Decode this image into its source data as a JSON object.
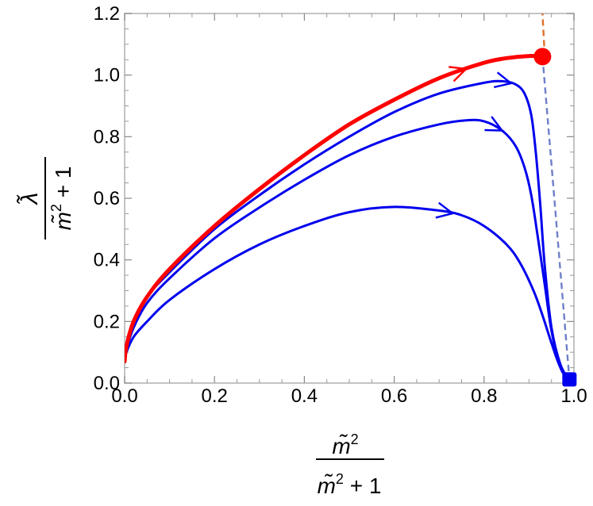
{
  "chart_data": {
    "type": "line",
    "xlim": [
      0,
      1
    ],
    "ylim": [
      0,
      1.2
    ],
    "x_ticks": [
      "0.0",
      "0.2",
      "0.4",
      "0.6",
      "0.8",
      "1.0"
    ],
    "y_ticks": [
      "0.0",
      "0.2",
      "0.4",
      "0.6",
      "0.8",
      "1.0",
      "1.2"
    ],
    "xlabel": {
      "numerator": "m̃",
      "numerator_exp": "2",
      "denominator": "m̃",
      "denominator_exp": "2",
      "denominator_rest": " + 1"
    },
    "ylabel": {
      "numerator": "λ̃",
      "denominator": "m̃",
      "denominator_exp": "2",
      "denominator_rest": " + 1"
    },
    "grid": false,
    "colors": {
      "red": "#ff0000",
      "blue": "#0000ee",
      "dash_orange": "#e0702a",
      "dash_blue": "#6f7fc8"
    },
    "series": [
      {
        "color": "red",
        "x": [
          0.0,
          0.004,
          0.02,
          0.05,
          0.1,
          0.2,
          0.3,
          0.4,
          0.5,
          0.6,
          0.7,
          0.8,
          0.85,
          0.9,
          0.93
        ],
        "y": [
          0.07,
          0.12,
          0.2,
          0.28,
          0.37,
          0.51,
          0.63,
          0.74,
          0.84,
          0.92,
          0.99,
          1.04,
          1.055,
          1.062,
          1.06
        ],
        "arrow_at": 0.76
      },
      {
        "color": "blue",
        "x": [
          0.0,
          0.004,
          0.02,
          0.05,
          0.1,
          0.2,
          0.3,
          0.4,
          0.5,
          0.6,
          0.7,
          0.8,
          0.84,
          0.87,
          0.89,
          0.905,
          0.915,
          0.925,
          0.935,
          0.95,
          0.97,
          0.99
        ],
        "y": [
          0.07,
          0.12,
          0.2,
          0.28,
          0.36,
          0.5,
          0.61,
          0.71,
          0.8,
          0.88,
          0.94,
          0.975,
          0.98,
          0.97,
          0.94,
          0.87,
          0.75,
          0.58,
          0.38,
          0.18,
          0.06,
          0.01
        ],
        "arrow_at": 0.86
      },
      {
        "color": "blue",
        "x": [
          0.0,
          0.004,
          0.02,
          0.05,
          0.1,
          0.2,
          0.3,
          0.4,
          0.5,
          0.6,
          0.7,
          0.76,
          0.8,
          0.84,
          0.87,
          0.89,
          0.905,
          0.92,
          0.935,
          0.95,
          0.97,
          0.99
        ],
        "y": [
          0.07,
          0.11,
          0.18,
          0.26,
          0.34,
          0.47,
          0.57,
          0.66,
          0.74,
          0.8,
          0.84,
          0.853,
          0.85,
          0.82,
          0.77,
          0.7,
          0.61,
          0.47,
          0.32,
          0.17,
          0.05,
          0.01
        ],
        "arrow_at": 0.84
      },
      {
        "color": "blue",
        "x": [
          0.0,
          0.004,
          0.02,
          0.05,
          0.1,
          0.2,
          0.3,
          0.4,
          0.5,
          0.6,
          0.7,
          0.75,
          0.8,
          0.85,
          0.88,
          0.91,
          0.93,
          0.95,
          0.97,
          0.99
        ],
        "y": [
          0.07,
          0.1,
          0.15,
          0.2,
          0.27,
          0.37,
          0.45,
          0.51,
          0.555,
          0.572,
          0.56,
          0.545,
          0.51,
          0.45,
          0.39,
          0.3,
          0.22,
          0.13,
          0.05,
          0.01
        ],
        "arrow_at": 0.73
      }
    ],
    "dashed_lines": [
      {
        "color": "dash_orange",
        "x": [
          0.935,
          0.93
        ],
        "y": [
          1.06,
          1.2
        ]
      },
      {
        "color": "dash_blue",
        "x": [
          0.93,
          0.99
        ],
        "y": [
          1.06,
          0.01
        ]
      }
    ],
    "markers": [
      {
        "color": "red",
        "shape": "circle",
        "x": 0.93,
        "y": 1.06
      },
      {
        "color": "blue",
        "shape": "square",
        "x": 0.99,
        "y": 0.012
      }
    ]
  }
}
